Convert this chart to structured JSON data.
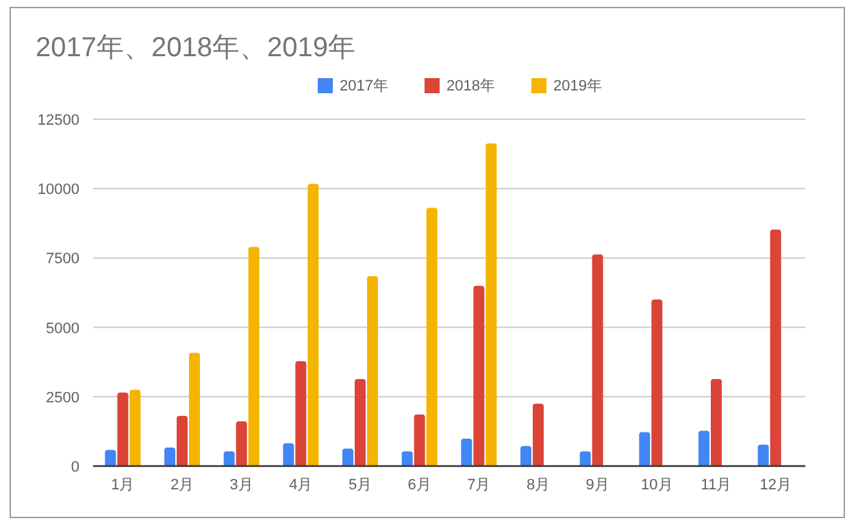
{
  "chart_data": {
    "type": "bar",
    "title": "2017年、2018年、2019年",
    "categories": [
      "1月",
      "2月",
      "3月",
      "4月",
      "5月",
      "6月",
      "7月",
      "8月",
      "9月",
      "10月",
      "11月",
      "12月"
    ],
    "series": [
      {
        "name": "2017年",
        "color": "#4285f4",
        "values": [
          580,
          670,
          530,
          820,
          630,
          530,
          990,
          720,
          530,
          1220,
          1270,
          770
        ]
      },
      {
        "name": "2018年",
        "color": "#db4437",
        "values": [
          2650,
          1810,
          1610,
          3780,
          3140,
          1860,
          6500,
          2250,
          7630,
          6000,
          3140,
          8520
        ]
      },
      {
        "name": "2019年",
        "color": "#f4b400",
        "values": [
          2750,
          4080,
          7900,
          10170,
          6840,
          9310,
          11630,
          null,
          null,
          null,
          null,
          null
        ]
      }
    ],
    "ylim": [
      0,
      12500
    ],
    "yticks": [
      0,
      2500,
      5000,
      7500,
      10000,
      12500
    ],
    "grid": "y",
    "legend": "top"
  }
}
